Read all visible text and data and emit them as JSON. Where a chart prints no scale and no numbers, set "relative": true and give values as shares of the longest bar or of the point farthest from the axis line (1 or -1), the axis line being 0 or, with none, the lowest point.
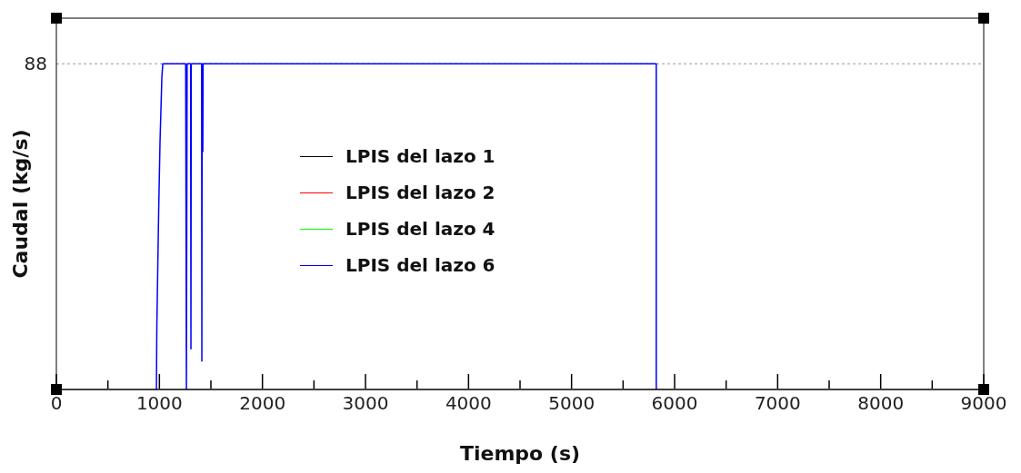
{
  "chart_data": {
    "type": "line",
    "xlabel": "Tiempo (s)",
    "ylabel": "Caudal (kg/s)",
    "relative": true,
    "xlim": [
      0,
      9000
    ],
    "xticks": [
      0,
      {
        "value": 500,
        "label": null
      },
      1000,
      {
        "value": 1500,
        "label": null
      },
      2000,
      {
        "value": 2500,
        "label": null
      },
      3000,
      {
        "value": 3500,
        "label": null
      },
      4000,
      {
        "value": 4500,
        "label": null
      },
      5000,
      {
        "value": 5500,
        "label": null
      },
      6000,
      {
        "value": 6500,
        "label": null
      },
      7000,
      {
        "value": 7500,
        "label": null
      },
      8000,
      {
        "value": 8500,
        "label": null
      },
      9000
    ],
    "legend": "left",
    "marker": "none",
    "line_style": "solid",
    "ref_lines": [
      {
        "axis": "y",
        "value": 1,
        "color": "#999999",
        "line_style": "dotted"
      }
    ],
    "annotations": [
      "88"
    ],
    "series": [
      {
        "name": "LPIS del lazo 1",
        "color": "#000000"
      },
      {
        "name": "LPIS del lazo 2",
        "color": "#ff0000"
      },
      {
        "name": "LPIS del lazo 4",
        "color": "#00ff00"
      },
      {
        "name": "LPIS del lazo 6",
        "color": "#0000ff",
        "x": [
          971,
          975,
          993,
          1006,
          1024,
          1033,
          1255,
          1262,
          1269,
          1303,
          1306,
          1309,
          1410,
          1412,
          1415,
          1418,
          1421,
          1424,
          5822,
          5822
        ],
        "values": [
          0,
          0.19,
          0.55,
          0.76,
          0.96,
          1,
          1,
          0,
          1,
          1,
          0.125,
          1,
          1,
          0.087,
          1,
          1,
          0.73,
          1,
          1,
          0
        ]
      }
    ]
  }
}
